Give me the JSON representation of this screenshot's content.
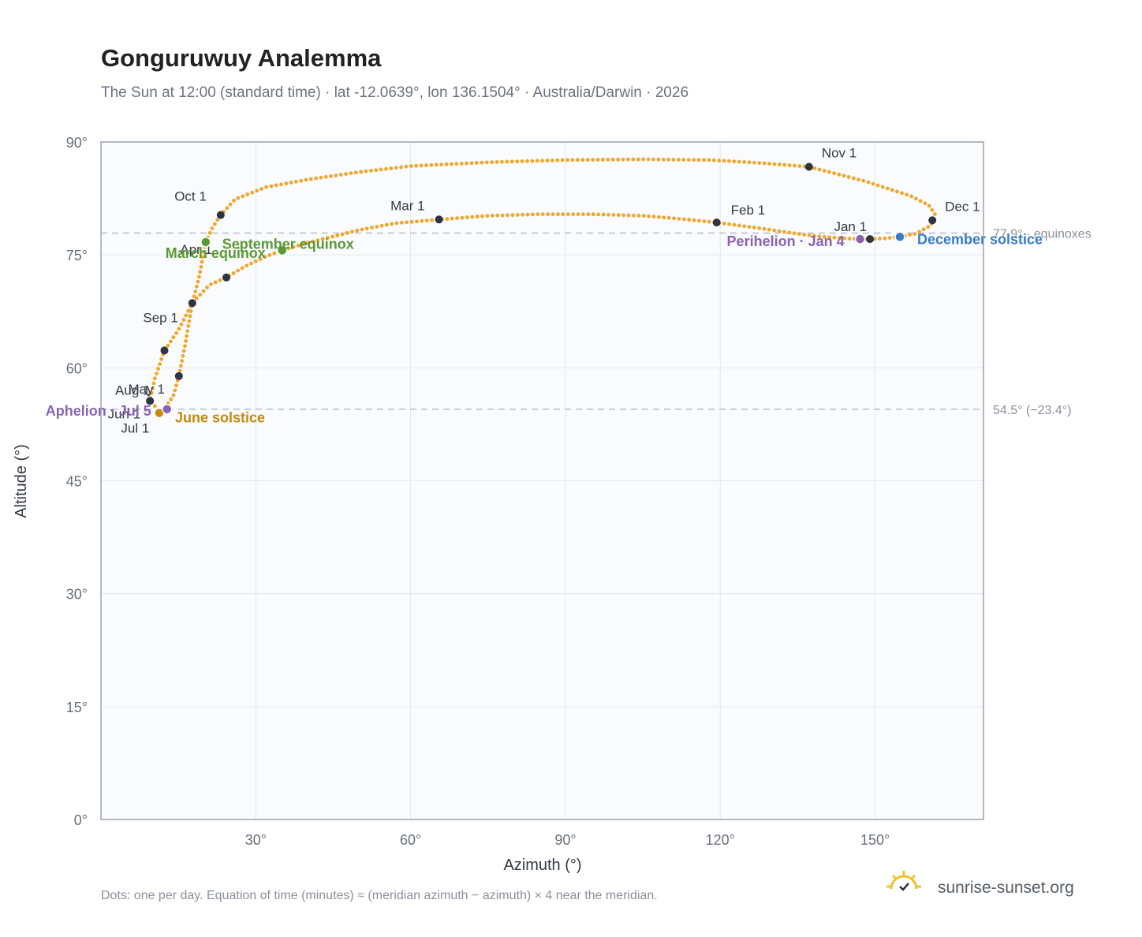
{
  "title": "Gonguruwuy Analemma",
  "subtitle": "The Sun at 12:00 (standard time) · lat -12.0639°, lon 136.1504° · Australia/Darwin · 2026",
  "footer_note": "Dots: one per day. Equation of time (minutes) ≈ (meridian azimuth − azimuth) × 4 near the meridian.",
  "brand": "sunrise-sunset.org",
  "colors": {
    "path": "#f2a62b",
    "month_marker": "#2e3440",
    "equinox": "#5a9a34",
    "june_solstice": "#c9890b",
    "december_solstice": "#3a7bc8",
    "apsis": "#8b63b4",
    "plot_bg": "#f9fbfd",
    "grid": "#e4e8ee",
    "reference_line": "#b8bec8",
    "logo": "#f2c12e"
  },
  "chart_data": {
    "type": "scatter",
    "xlabel": "Azimuth (°)",
    "ylabel": "Altitude (°)",
    "xlim": [
      0,
      171
    ],
    "ylim": [
      0,
      90
    ],
    "xticks": [
      30,
      60,
      90,
      120,
      150
    ],
    "xtick_labels": [
      "30°",
      "60°",
      "90°",
      "120°",
      "150°"
    ],
    "yticks": [
      0,
      15,
      30,
      45,
      60,
      75,
      90
    ],
    "ytick_labels": [
      "0°",
      "15°",
      "30°",
      "45°",
      "60°",
      "75°",
      "90°"
    ],
    "grid": true,
    "series": [
      {
        "path_keypoints": [
          [
            154.8,
            77.4
          ],
          [
            157.8,
            77.8
          ],
          [
            160.8,
            78.9
          ],
          [
            161.6,
            80.4
          ],
          [
            160.4,
            81.6
          ],
          [
            157.0,
            82.8
          ],
          [
            148.0,
            84.8
          ],
          [
            137.2,
            86.7
          ],
          [
            128.0,
            87.2
          ],
          [
            118.0,
            87.6
          ],
          [
            105.0,
            87.7
          ],
          [
            90.0,
            87.6
          ],
          [
            75.0,
            87.3
          ],
          [
            60.0,
            86.8
          ],
          [
            50.0,
            86.0
          ],
          [
            40.0,
            85.0
          ],
          [
            32.0,
            84.0
          ],
          [
            26.0,
            82.4
          ],
          [
            23.2,
            80.3
          ],
          [
            21.5,
            78.5
          ],
          [
            20.3,
            76.7
          ],
          [
            19.0,
            72.0
          ],
          [
            17.7,
            68.6
          ],
          [
            16.3,
            63.0
          ],
          [
            15.1,
            58.9
          ],
          [
            14.0,
            56.2
          ],
          [
            12.3,
            54.6
          ],
          [
            11.2,
            54.1
          ],
          [
            10.2,
            55.2
          ],
          [
            9.5,
            55.6
          ],
          [
            10.4,
            58.5
          ],
          [
            12.3,
            62.3
          ],
          [
            15.0,
            65.0
          ],
          [
            17.7,
            68.6
          ],
          [
            21.0,
            71.0
          ],
          [
            24.3,
            72.0
          ],
          [
            28.0,
            73.5
          ],
          [
            32.0,
            74.8
          ],
          [
            35.1,
            75.6
          ],
          [
            40.0,
            76.6
          ],
          [
            50.0,
            78.3
          ],
          [
            57.0,
            79.2
          ],
          [
            65.5,
            79.7
          ],
          [
            75.0,
            80.2
          ],
          [
            85.0,
            80.4
          ],
          [
            95.0,
            80.4
          ],
          [
            105.0,
            80.2
          ],
          [
            112.0,
            79.8
          ],
          [
            119.3,
            79.3
          ],
          [
            127.0,
            78.6
          ],
          [
            135.0,
            77.8
          ],
          [
            140.0,
            77.4
          ],
          [
            144.0,
            77.2
          ],
          [
            147.1,
            77.1
          ],
          [
            149.0,
            77.1
          ],
          [
            152.0,
            77.2
          ],
          [
            154.8,
            77.4
          ]
        ]
      }
    ],
    "month_markers": [
      {
        "label": "Jan 1",
        "az": 149.0,
        "alt": 77.1
      },
      {
        "label": "Feb 1",
        "az": 119.3,
        "alt": 79.3
      },
      {
        "label": "Mar 1",
        "az": 65.5,
        "alt": 79.7
      },
      {
        "label": "Apr 1",
        "az": 24.3,
        "alt": 72.0
      },
      {
        "label": "May 1",
        "az": 15.1,
        "alt": 58.9
      },
      {
        "label": "Jun 1",
        "az": 9.5,
        "alt": 55.6
      },
      {
        "label": "Jul 1",
        "az": 11.2,
        "alt": 54.1
      },
      {
        "label": "Aug 1",
        "az": 12.3,
        "alt": 62.3
      },
      {
        "label": "Sep 1",
        "az": 17.7,
        "alt": 68.6
      },
      {
        "label": "Oct 1",
        "az": 23.2,
        "alt": 80.3
      },
      {
        "label": "Nov 1",
        "az": 137.2,
        "alt": 86.7
      },
      {
        "label": "Dec 1",
        "az": 161.1,
        "alt": 79.6
      }
    ],
    "events": [
      {
        "label": "March equinox",
        "az": 20.3,
        "alt": 76.7,
        "kind": "equinox"
      },
      {
        "label": "September equinox",
        "az": 35.1,
        "alt": 75.6,
        "kind": "equinox"
      },
      {
        "label": "June solstice",
        "az": 11.3,
        "alt": 54.0,
        "kind": "june_solstice"
      },
      {
        "label": "December solstice",
        "az": 154.8,
        "alt": 77.4,
        "kind": "december_solstice"
      },
      {
        "label": "Perihelion · Jan 4",
        "az": 147.1,
        "alt": 77.1,
        "kind": "apsis"
      },
      {
        "label": "Aphelion · Jul 5",
        "az": 12.8,
        "alt": 54.5,
        "kind": "apsis"
      }
    ],
    "reference_lines": [
      {
        "alt": 77.9,
        "label": "77.9° · equinoxes"
      },
      {
        "alt": 54.5,
        "label": "54.5° (−23.4°)"
      }
    ]
  }
}
